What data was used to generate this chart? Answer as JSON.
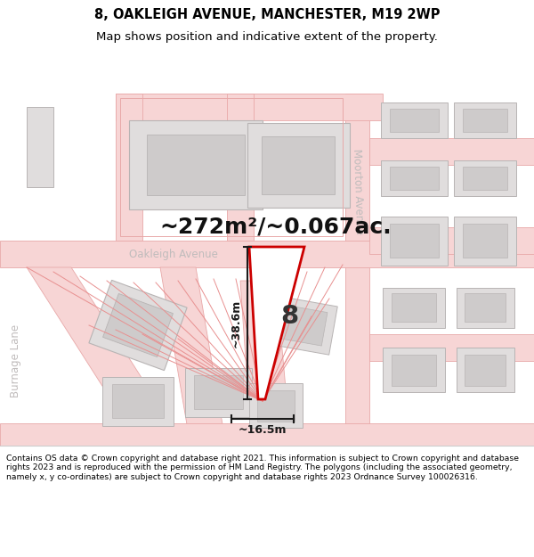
{
  "title": "8, OAKLEIGH AVENUE, MANCHESTER, M19 2WP",
  "subtitle": "Map shows position and indicative extent of the property.",
  "area_text": "~272m²/~0.067ac.",
  "dim_height": "~38.6m",
  "dim_width": "~16.5m",
  "property_number": "8",
  "footer": "Contains OS data © Crown copyright and database right 2021. This information is subject to Crown copyright and database rights 2023 and is reproduced with the permission of HM Land Registry. The polygons (including the associated geometry, namely x, y co-ordinates) are subject to Crown copyright and database rights 2023 Ordnance Survey 100026316.",
  "map_bg": "#f0eeee",
  "road_fill": "#f7d5d5",
  "road_edge": "#e8a8a8",
  "building_fill": "#e0dddd",
  "building_inner": "#cecbcb",
  "building_edge": "#b8b4b4",
  "property_fill": "#ffffff",
  "property_edge": "#cc0000",
  "spoke_color": "#e89090",
  "dim_color": "#1a1a1a",
  "street_color": "#c0bcbc",
  "title_fontsize": 10.5,
  "subtitle_fontsize": 9.5,
  "footer_fontsize": 6.7
}
